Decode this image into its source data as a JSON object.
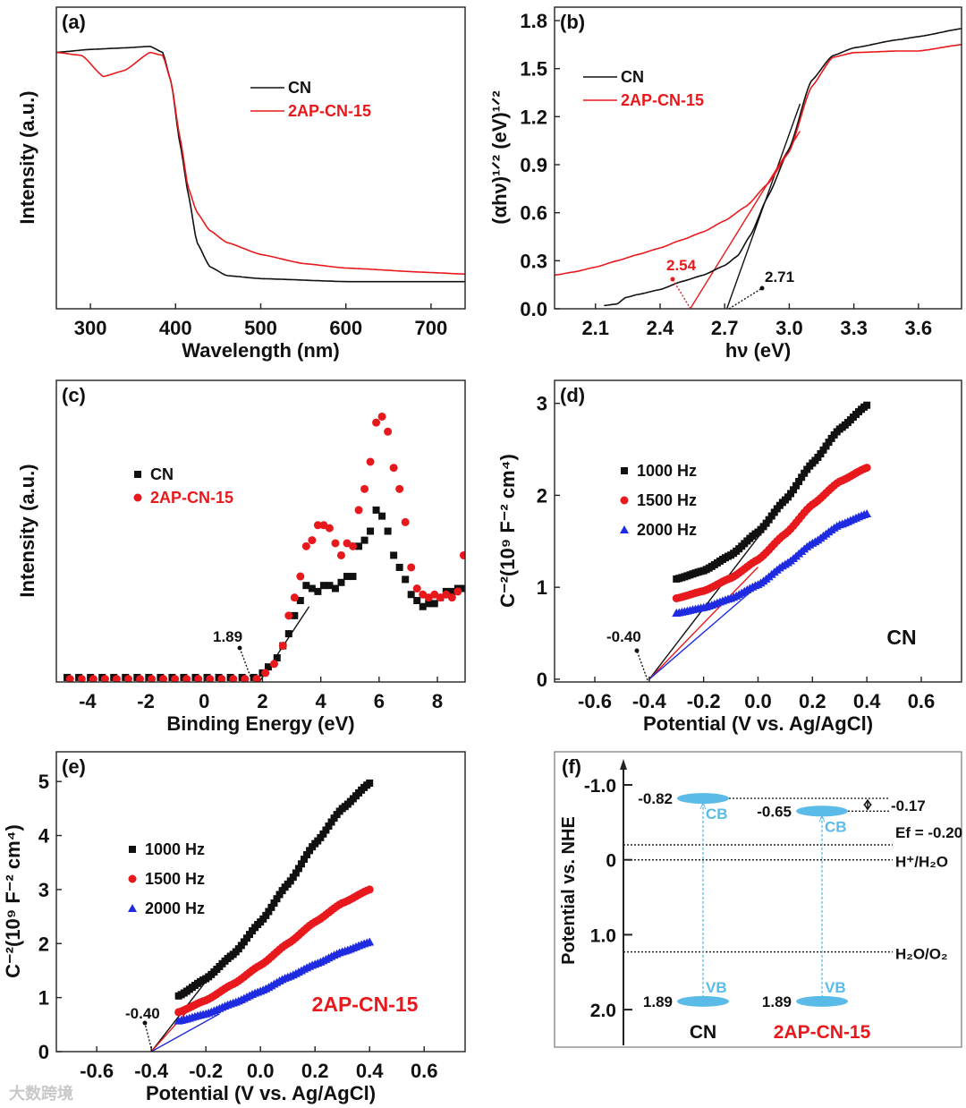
{
  "colors": {
    "black": "#111111",
    "red": "#e8191c",
    "blue": "#1f2be0",
    "band": "#5bbbe8",
    "frame": "#222222"
  },
  "chart_data": [
    {
      "panel": "(a)",
      "type": "line",
      "xlabel": "Wavelength (nm)",
      "ylabel": "Intensity (a.u.)",
      "xlim": [
        260,
        740
      ],
      "ylim": [
        0,
        1
      ],
      "xticks": [
        "300",
        "400",
        "500",
        "600",
        "700"
      ],
      "yticks": [],
      "legend": [
        "CN",
        "2AP-CN-15"
      ],
      "legend_position": "upper-right",
      "series": [
        {
          "name": "CN",
          "color": "#111111",
          "x": [
            260,
            300,
            340,
            370,
            385,
            395,
            405,
            415,
            425,
            440,
            460,
            500,
            600,
            740
          ],
          "y": [
            0.85,
            0.86,
            0.865,
            0.87,
            0.85,
            0.75,
            0.55,
            0.38,
            0.22,
            0.14,
            0.11,
            0.1,
            0.09,
            0.09
          ]
        },
        {
          "name": "2AP-CN-15",
          "color": "#e8191c",
          "x": [
            260,
            290,
            315,
            340,
            370,
            385,
            395,
            405,
            415,
            425,
            440,
            460,
            500,
            550,
            600,
            700,
            740
          ],
          "y": [
            0.85,
            0.84,
            0.77,
            0.79,
            0.85,
            0.84,
            0.75,
            0.57,
            0.4,
            0.32,
            0.26,
            0.22,
            0.18,
            0.15,
            0.135,
            0.12,
            0.115
          ]
        }
      ]
    },
    {
      "panel": "(b)",
      "type": "line",
      "xlabel": "hν (eV)",
      "ylabel": "(αhν)¹ᐟ² (eV)¹ᐟ²",
      "xlim": [
        1.91,
        3.8
      ],
      "ylim": [
        0,
        1.884
      ],
      "xticks": [
        "2.1",
        "2.4",
        "2.7",
        "3.0",
        "3.3",
        "3.6"
      ],
      "yticks": [
        "0.0",
        "0.3",
        "0.6",
        "0.9",
        "1.2",
        "1.5",
        "1.8"
      ],
      "legend": [
        "CN",
        "2AP-CN-15"
      ],
      "legend_position": "upper-left",
      "series": [
        {
          "name": "CN",
          "color": "#111111",
          "x": [
            2.14,
            2.2,
            2.24,
            2.3,
            2.4,
            2.5,
            2.6,
            2.7,
            2.76,
            2.82,
            2.9,
            3.0,
            3.1,
            3.2,
            3.3,
            3.5,
            3.6,
            3.8
          ],
          "y": [
            0.02,
            0.03,
            0.07,
            0.09,
            0.12,
            0.17,
            0.21,
            0.27,
            0.33,
            0.46,
            0.7,
            1.0,
            1.42,
            1.58,
            1.63,
            1.68,
            1.7,
            1.75
          ]
        },
        {
          "name": "2AP-CN-15",
          "color": "#e8191c",
          "x": [
            1.91,
            2.0,
            2.1,
            2.2,
            2.3,
            2.4,
            2.5,
            2.6,
            2.7,
            2.8,
            2.9,
            3.0,
            3.1,
            3.2,
            3.3,
            3.5,
            3.6,
            3.8
          ],
          "y": [
            0.21,
            0.23,
            0.26,
            0.3,
            0.34,
            0.38,
            0.43,
            0.48,
            0.55,
            0.64,
            0.78,
            0.98,
            1.38,
            1.57,
            1.6,
            1.61,
            1.61,
            1.65
          ]
        }
      ],
      "fits": [
        {
          "color": "#111111",
          "x": [
            2.71,
            3.05
          ],
          "y": [
            0,
            1.28
          ]
        },
        {
          "color": "#e8191c",
          "x": [
            2.54,
            3.05
          ],
          "y": [
            0,
            1.11
          ]
        }
      ],
      "annotations": [
        {
          "text": "2.54",
          "color": "#e8191c"
        },
        {
          "text": "2.71",
          "color": "#111111"
        }
      ]
    },
    {
      "panel": "(c)",
      "type": "scatter",
      "xlabel": "Binding Energy (eV)",
      "ylabel": "Intensity (a.u.)",
      "xlim": [
        -5.07,
        8.95
      ],
      "ylim": [
        0,
        1
      ],
      "xticks": [
        "-4",
        "-2",
        "0",
        "2",
        "4",
        "6",
        "8"
      ],
      "yticks": [],
      "legend": [
        "CN",
        "2AP-CN-15"
      ],
      "legend_position": "middle-left",
      "series": [
        {
          "name": "CN",
          "color": "#111111",
          "marker": "square",
          "x": [
            -4.7,
            -4.3,
            -3.9,
            -3.5,
            -3.1,
            -2.7,
            -2.3,
            -1.9,
            -1.5,
            -1.1,
            -0.7,
            -0.3,
            0.1,
            0.5,
            0.9,
            1.3,
            1.7,
            2.0,
            2.2,
            2.5,
            2.7,
            2.9,
            3.1,
            3.3,
            3.5,
            3.7,
            3.9,
            4.1,
            4.3,
            4.5,
            4.7,
            4.9,
            5.1,
            5.3,
            5.5,
            5.7,
            5.9,
            6.1,
            6.3,
            6.5,
            6.7,
            6.9,
            7.1,
            7.3,
            7.5,
            7.7,
            7.9,
            8.1,
            8.3,
            8.5,
            8.7,
            8.9
          ],
          "y": [
            0.015,
            0.015,
            0.015,
            0.015,
            0.015,
            0.015,
            0.015,
            0.015,
            0.015,
            0.015,
            0.015,
            0.015,
            0.015,
            0.015,
            0.015,
            0.015,
            0.015,
            0.03,
            0.05,
            0.08,
            0.12,
            0.16,
            0.22,
            0.27,
            0.32,
            0.31,
            0.3,
            0.32,
            0.32,
            0.31,
            0.33,
            0.35,
            0.35,
            0.45,
            0.47,
            0.5,
            0.57,
            0.55,
            0.5,
            0.42,
            0.38,
            0.34,
            0.29,
            0.27,
            0.25,
            0.26,
            0.26,
            0.28,
            0.3,
            0.3,
            0.31,
            0.31
          ]
        },
        {
          "name": "2AP-CN-15",
          "color": "#e8191c",
          "marker": "circle",
          "x": [
            -4.6,
            -4.2,
            -3.8,
            -3.4,
            -3.0,
            -2.6,
            -2.2,
            -1.8,
            -1.4,
            -1.0,
            -0.6,
            -0.2,
            0.2,
            0.6,
            1.0,
            1.4,
            1.8,
            2.1,
            2.4,
            2.7,
            2.9,
            3.1,
            3.3,
            3.5,
            3.7,
            3.9,
            4.1,
            4.3,
            4.5,
            4.7,
            4.9,
            5.1,
            5.3,
            5.5,
            5.7,
            5.9,
            6.1,
            6.3,
            6.5,
            6.7,
            6.9,
            7.1,
            7.3,
            7.5,
            7.7,
            7.9,
            8.1,
            8.3,
            8.5,
            8.7,
            8.9
          ],
          "y": [
            0.01,
            0.01,
            0.01,
            0.01,
            0.01,
            0.01,
            0.01,
            0.01,
            0.01,
            0.01,
            0.01,
            0.01,
            0.01,
            0.01,
            0.01,
            0.01,
            0.01,
            0.03,
            0.06,
            0.12,
            0.22,
            0.28,
            0.35,
            0.45,
            0.47,
            0.52,
            0.52,
            0.51,
            0.46,
            0.42,
            0.46,
            0.45,
            0.57,
            0.64,
            0.73,
            0.86,
            0.88,
            0.83,
            0.71,
            0.64,
            0.53,
            0.38,
            0.31,
            0.29,
            0.28,
            0.29,
            0.28,
            0.29,
            0.28,
            0.3,
            0.42
          ]
        }
      ],
      "fits": [
        {
          "color": "#111111",
          "x": [
            1.89,
            3.6
          ],
          "y": [
            0,
            0.25
          ]
        }
      ],
      "annotations": [
        {
          "text": "1.89",
          "color": "#111111"
        }
      ]
    },
    {
      "panel": "(d)",
      "type": "scatter",
      "xlabel": "Potential (V vs. Ag/AgCl)",
      "ylabel": "C⁻²(10⁹ F⁻² cm⁴)",
      "xlim": [
        -0.748,
        0.748
      ],
      "ylim": [
        -0.03,
        3.25
      ],
      "xticks": [
        "-0.6",
        "-0.4",
        "-0.2",
        "0.0",
        "0.2",
        "0.4",
        "0.6"
      ],
      "yticks": [
        "0",
        "1",
        "2",
        "3"
      ],
      "legend": [
        "1000 Hz",
        "1500 Hz",
        "2000 Hz"
      ],
      "legend_position": "middle-left",
      "sample_label": "CN",
      "series": [
        {
          "name": "1000 Hz",
          "color": "#111111",
          "marker": "square",
          "x": [
            -0.3,
            -0.2,
            -0.1,
            0,
            0.1,
            0.2,
            0.3,
            0.4
          ],
          "y": [
            1.09,
            1.18,
            1.35,
            1.6,
            1.95,
            2.35,
            2.72,
            2.98
          ]
        },
        {
          "name": "1500 Hz",
          "color": "#e8191c",
          "marker": "circle",
          "x": [
            -0.3,
            -0.2,
            -0.1,
            0,
            0.1,
            0.2,
            0.3,
            0.4
          ],
          "y": [
            0.88,
            0.96,
            1.1,
            1.3,
            1.58,
            1.9,
            2.15,
            2.3
          ]
        },
        {
          "name": "2000 Hz",
          "color": "#1f2be0",
          "marker": "triangle",
          "x": [
            -0.3,
            -0.2,
            -0.1,
            0,
            0.1,
            0.2,
            0.3,
            0.4
          ],
          "y": [
            0.72,
            0.78,
            0.88,
            1.03,
            1.25,
            1.48,
            1.68,
            1.8
          ]
        }
      ],
      "fits": [
        {
          "color": "#111111",
          "x": [
            -0.4,
            0.02
          ],
          "y": [
            0,
            1.62
          ]
        },
        {
          "color": "#e8191c",
          "x": [
            -0.4,
            0.0
          ],
          "y": [
            0,
            1.22
          ]
        },
        {
          "color": "#1f2be0",
          "x": [
            -0.4,
            0.0
          ],
          "y": [
            0,
            1.02
          ]
        }
      ],
      "annotations": [
        {
          "text": "-0.40",
          "color": "#111111"
        }
      ]
    },
    {
      "panel": "(e)",
      "type": "scatter",
      "xlabel": "Potential (V vs. Ag/AgCl)",
      "ylabel": "C⁻²(10⁹ F⁻² cm⁴)",
      "xlim": [
        -0.748,
        0.75
      ],
      "ylim": [
        0,
        5.55
      ],
      "xticks": [
        "-0.6",
        "-0.4",
        "-0.2",
        "0.0",
        "0.2",
        "0.4",
        "0.6"
      ],
      "yticks": [
        "0",
        "1",
        "2",
        "3",
        "4",
        "5"
      ],
      "legend": [
        "1000 Hz",
        "1500 Hz",
        "2000 Hz"
      ],
      "legend_position": "middle-left",
      "sample_label": "2AP-CN-15",
      "series": [
        {
          "name": "1000 Hz",
          "color": "#111111",
          "marker": "square",
          "x": [
            -0.3,
            -0.2,
            -0.1,
            0,
            0.1,
            0.2,
            0.3,
            0.4
          ],
          "y": [
            1.03,
            1.35,
            1.8,
            2.4,
            3.1,
            3.85,
            4.5,
            4.97
          ]
        },
        {
          "name": "1500 Hz",
          "color": "#e8191c",
          "marker": "circle",
          "x": [
            -0.3,
            -0.2,
            -0.1,
            0,
            0.1,
            0.2,
            0.3,
            0.4
          ],
          "y": [
            0.73,
            0.95,
            1.25,
            1.6,
            2.0,
            2.4,
            2.75,
            3.0
          ]
        },
        {
          "name": "2000 Hz",
          "color": "#1f2be0",
          "marker": "triangle",
          "x": [
            -0.3,
            -0.2,
            -0.1,
            0,
            0.1,
            0.2,
            0.3,
            0.4
          ],
          "y": [
            0.57,
            0.7,
            0.9,
            1.12,
            1.38,
            1.62,
            1.85,
            2.03
          ]
        }
      ],
      "fits": [
        {
          "color": "#111111",
          "x": [
            -0.4,
            -0.2
          ],
          "y": [
            0,
            1.3
          ]
        },
        {
          "color": "#e8191c",
          "x": [
            -0.4,
            -0.25
          ],
          "y": [
            0,
            0.85
          ]
        },
        {
          "color": "#1f2be0",
          "x": [
            -0.4,
            -0.15
          ],
          "y": [
            0,
            0.7
          ]
        }
      ],
      "annotations": [
        {
          "text": "-0.40",
          "color": "#111111"
        }
      ]
    }
  ],
  "band_diagram": {
    "panel": "(f)",
    "ylabel": "Potential vs. NHE",
    "ylim": [
      -1.3,
      2.45
    ],
    "yticks": [
      "-1.0",
      "0",
      "1.0",
      "2.0"
    ],
    "samples": [
      {
        "name": "CN",
        "color": "#111111",
        "cb": -0.82,
        "vb": 1.89,
        "cb_text": "-0.82",
        "vb_text": "1.89"
      },
      {
        "name": "2AP-CN-15",
        "color": "#e8191c",
        "cb": -0.65,
        "vb": 1.89,
        "cb_text": "-0.65",
        "vb_text": "1.89"
      }
    ],
    "cb_label": "CB",
    "vb_label": "VB",
    "diff_label": "-0.17",
    "levels": [
      {
        "value": -0.2,
        "label": "Ef = -0.20"
      },
      {
        "value": 0,
        "label": "H⁺/H₂O"
      },
      {
        "value": 1.23,
        "label": "H₂O/O₂"
      }
    ]
  },
  "watermark": "大数跨境"
}
